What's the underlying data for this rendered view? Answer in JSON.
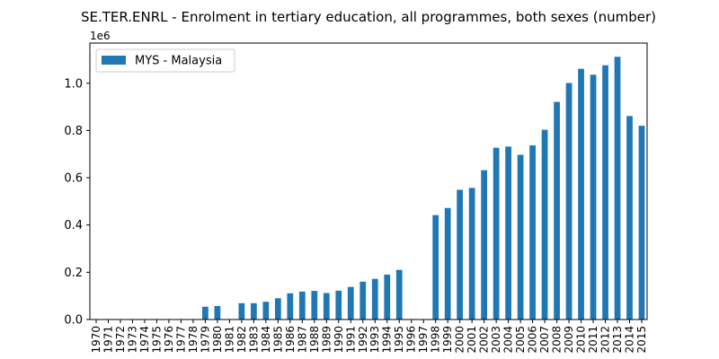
{
  "chart_data": {
    "type": "bar",
    "title": "SE.TER.ENRL - Enrolment in tertiary education, all programmes, both sexes (number)",
    "xlabel": "",
    "ylabel": "",
    "y_offset_label": "1e6",
    "ylim": [
      0,
      1.17
    ],
    "yticks": [
      "0.0",
      "0.2",
      "0.4",
      "0.6",
      "0.8",
      "1.0"
    ],
    "legend_position": "top-left",
    "grid": false,
    "series": [
      {
        "name": "MYS - Malaysia",
        "color": "#1f77b4",
        "values": [
          null,
          null,
          null,
          null,
          null,
          null,
          null,
          null,
          null,
          0.054,
          0.057,
          null,
          0.069,
          0.069,
          0.075,
          0.09,
          0.111,
          0.118,
          0.121,
          0.112,
          0.122,
          0.138,
          0.16,
          0.172,
          0.19,
          0.21,
          null,
          null,
          0.442,
          0.472,
          0.549,
          0.557,
          0.632,
          0.727,
          0.732,
          0.697,
          0.737,
          0.803,
          0.921,
          1.001,
          1.061,
          1.036,
          1.076,
          1.112,
          0.861,
          0.82
        ]
      }
    ],
    "categories": [
      "1970",
      "1971",
      "1972",
      "1973",
      "1974",
      "1975",
      "1976",
      "1977",
      "1978",
      "1979",
      "1980",
      "1981",
      "1982",
      "1983",
      "1984",
      "1985",
      "1986",
      "1987",
      "1988",
      "1989",
      "1990",
      "1991",
      "1992",
      "1993",
      "1994",
      "1995",
      "1996",
      "1997",
      "1998",
      "1999",
      "2000",
      "2001",
      "2002",
      "2003",
      "2004",
      "2005",
      "2006",
      "2007",
      "2008",
      "2009",
      "2010",
      "2011",
      "2012",
      "2013",
      "2014",
      "2015"
    ]
  }
}
